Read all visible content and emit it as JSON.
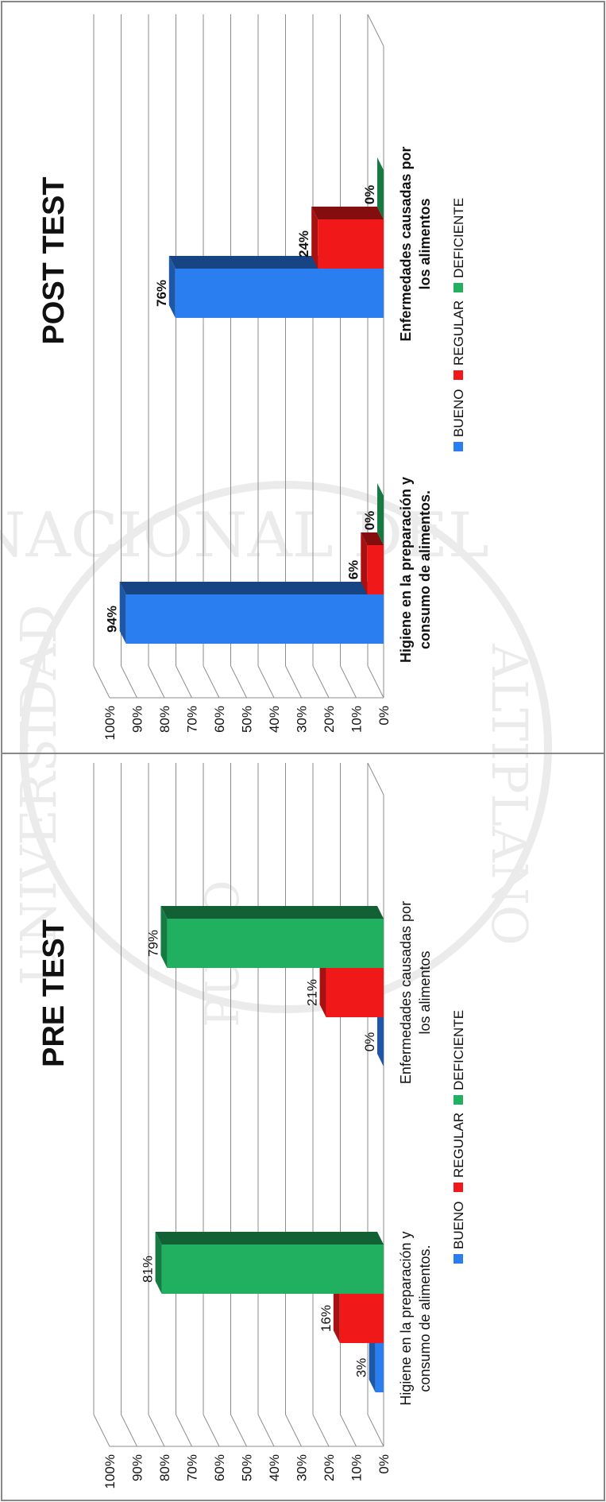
{
  "colors": {
    "bueno": "#2a7ef0",
    "regular": "#f01818",
    "deficiente": "#20b060",
    "grid": "#8c8c8c",
    "border": "#888888",
    "text": "#111111",
    "watermark": "#dcdcdc"
  },
  "watermark": {
    "top_text": "NACIONAL DEL",
    "side_text_left": "UNIVERSIDAD",
    "side_text_right": "ALTIPLANO",
    "bottom_text": "PUNO"
  },
  "chart_data": [
    {
      "type": "bar",
      "title": "PRE TEST",
      "categories": [
        "Higiene en la preparación y consumo de alimentos.",
        "Enfermedades causadas por los alimentos"
      ],
      "series": [
        {
          "name": "BUENO",
          "values": [
            3,
            0
          ],
          "labels": [
            "3%",
            "0%"
          ]
        },
        {
          "name": "REGULAR",
          "values": [
            16,
            21
          ],
          "labels": [
            "16%",
            "21%"
          ]
        },
        {
          "name": "DEFICIENTE",
          "values": [
            81,
            79
          ],
          "labels": [
            "81%",
            "79%"
          ]
        }
      ],
      "yticks": [
        "0%",
        "10%",
        "20%",
        "30%",
        "40%",
        "50%",
        "60%",
        "70%",
        "80%",
        "90%",
        "100%"
      ],
      "ylim": [
        0,
        100
      ],
      "grid": true,
      "legend": "bottom",
      "bold_labels": false
    },
    {
      "type": "bar",
      "title": "POST TEST",
      "categories": [
        "Higiene en la preparación y consumo de alimentos.",
        "Enfermedades causadas por los alimentos"
      ],
      "series": [
        {
          "name": "BUENO",
          "values": [
            94,
            76
          ],
          "labels": [
            "94%",
            "76%"
          ]
        },
        {
          "name": "REGULAR",
          "values": [
            6,
            24
          ],
          "labels": [
            "6%",
            "24%"
          ]
        },
        {
          "name": "DEFICIENTE",
          "values": [
            0,
            0
          ],
          "labels": [
            "0%",
            "0%"
          ]
        }
      ],
      "yticks": [
        "0%",
        "10%",
        "20%",
        "30%",
        "40%",
        "50%",
        "60%",
        "70%",
        "80%",
        "90%",
        "100%"
      ],
      "ylim": [
        0,
        100
      ],
      "grid": true,
      "legend": "bottom",
      "bold_labels": true
    }
  ]
}
